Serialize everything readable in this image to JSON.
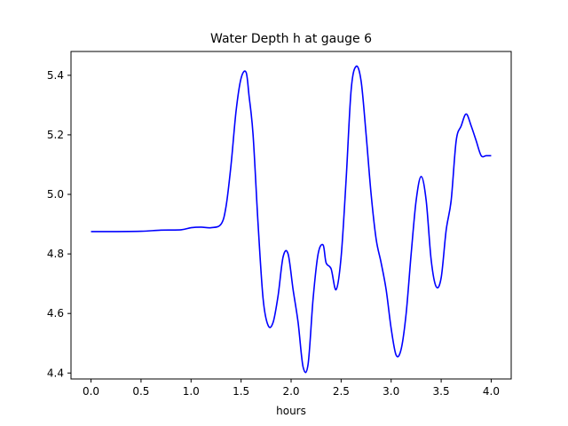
{
  "chart_data": {
    "type": "line",
    "title": "Water Depth h at gauge 6",
    "xlabel": "hours",
    "ylabel": "",
    "xlim": [
      -0.2,
      4.2
    ],
    "ylim": [
      4.38,
      5.48
    ],
    "xticks": [
      0.0,
      0.5,
      1.0,
      1.5,
      2.0,
      2.5,
      3.0,
      3.5,
      4.0
    ],
    "xtick_labels": [
      "0.0",
      "0.5",
      "1.0",
      "1.5",
      "2.0",
      "2.5",
      "3.0",
      "3.5",
      "4.0"
    ],
    "yticks": [
      4.4,
      4.6,
      4.8,
      5.0,
      5.2,
      5.4
    ],
    "ytick_labels": [
      "4.4",
      "4.6",
      "4.8",
      "5.0",
      "5.2",
      "5.4"
    ],
    "grid": false,
    "series": [
      {
        "color": "#0000ff",
        "x": [
          0.0,
          0.2,
          0.5,
          0.7,
          0.9,
          1.0,
          1.1,
          1.2,
          1.3,
          1.35,
          1.4,
          1.45,
          1.5,
          1.55,
          1.58,
          1.62,
          1.67,
          1.72,
          1.77,
          1.82,
          1.87,
          1.92,
          1.97,
          2.02,
          2.07,
          2.12,
          2.17,
          2.22,
          2.27,
          2.32,
          2.35,
          2.4,
          2.45,
          2.5,
          2.55,
          2.6,
          2.65,
          2.7,
          2.75,
          2.8,
          2.85,
          2.9,
          2.95,
          3.0,
          3.05,
          3.1,
          3.15,
          3.2,
          3.25,
          3.3,
          3.35,
          3.4,
          3.45,
          3.5,
          3.55,
          3.6,
          3.65,
          3.7,
          3.75,
          3.8,
          3.85,
          3.9,
          3.95,
          4.0
        ],
        "y": [
          4.875,
          4.875,
          4.876,
          4.88,
          4.881,
          4.888,
          4.89,
          4.888,
          4.9,
          4.96,
          5.1,
          5.28,
          5.39,
          5.41,
          5.33,
          5.2,
          4.9,
          4.65,
          4.56,
          4.57,
          4.66,
          4.79,
          4.8,
          4.68,
          4.57,
          4.42,
          4.43,
          4.65,
          4.8,
          4.83,
          4.77,
          4.75,
          4.68,
          4.79,
          5.05,
          5.35,
          5.43,
          5.38,
          5.2,
          5.0,
          4.85,
          4.77,
          4.68,
          4.55,
          4.46,
          4.48,
          4.6,
          4.8,
          4.98,
          5.06,
          4.98,
          4.78,
          4.69,
          4.72,
          4.88,
          4.98,
          5.18,
          5.23,
          5.27,
          5.23,
          5.18,
          5.13,
          5.13,
          5.13
        ]
      }
    ]
  }
}
